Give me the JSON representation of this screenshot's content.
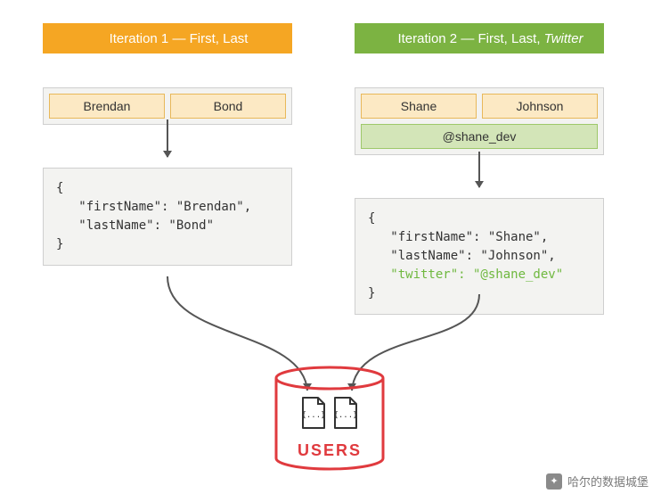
{
  "colors": {
    "header_orange": "#f5a623",
    "header_green": "#7cb342",
    "field_orange_bg": "#fce9c4",
    "field_orange_border": "#e8b85a",
    "field_green_bg": "#d3e5b8",
    "field_green_border": "#9ec86a",
    "panel_bg": "#f3f3f1",
    "panel_border": "#cfcfcf",
    "arrow": "#555555",
    "db_red": "#e03a3e",
    "json_highlight": "#6fb83f",
    "text": "#333333"
  },
  "iter1": {
    "title_plain": "Iteration 1 — First, Last",
    "title_italic": "",
    "fields": [
      {
        "label": "Brendan",
        "style": "orange"
      },
      {
        "label": "Bond",
        "style": "orange"
      }
    ],
    "json_lines": [
      {
        "text": "{",
        "highlight": false
      },
      {
        "text": "   \"firstName\": \"Brendan\",",
        "highlight": false
      },
      {
        "text": "   \"lastName\": \"Bond\"",
        "highlight": false
      },
      {
        "text": "}",
        "highlight": false
      }
    ]
  },
  "iter2": {
    "title_plain": "Iteration 2 — First, Last, ",
    "title_italic": "Twitter",
    "fields": [
      {
        "label": "Shane",
        "style": "orange"
      },
      {
        "label": "Johnson",
        "style": "orange"
      },
      {
        "label": "@shane_dev",
        "style": "green",
        "wide": false
      }
    ],
    "json_lines": [
      {
        "text": "{",
        "highlight": false
      },
      {
        "text": "   \"firstName\": \"Shane\",",
        "highlight": false
      },
      {
        "text": "   \"lastName\": \"Johnson\",",
        "highlight": false
      },
      {
        "text": "   \"twitter\": \"@shane_dev\"",
        "highlight": true
      },
      {
        "text": "}",
        "highlight": false
      }
    ]
  },
  "db_label": "USERS",
  "watermark": "哈尔的数据城堡"
}
